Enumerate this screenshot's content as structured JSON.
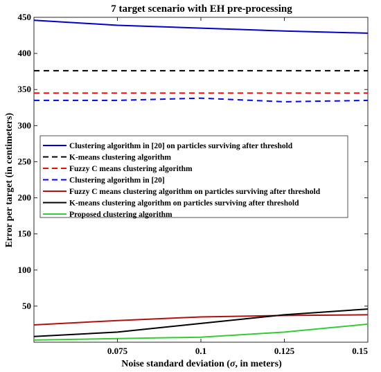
{
  "chart_data": {
    "type": "line",
    "title": "7 target scenario with EH pre-processing",
    "xlabel_prefix": "Noise standard deviation (",
    "xlabel_symbol": "σ",
    "xlabel_suffix": ", in meters)",
    "ylabel": "Error per target (in centimeters)",
    "xlim": [
      0.05,
      0.15
    ],
    "ylim": [
      0,
      450
    ],
    "x_ticks": [
      0.075,
      0.1,
      0.125,
      0.15
    ],
    "x_tick_labels": [
      "0.075",
      "0.1",
      "0.125",
      "0.15"
    ],
    "y_ticks": [
      50,
      100,
      150,
      200,
      250,
      300,
      350,
      400,
      450
    ],
    "y_tick_labels": [
      "50",
      "100",
      "150",
      "200",
      "250",
      "300",
      "350",
      "400",
      "450"
    ],
    "x": [
      0.05,
      0.075,
      0.1,
      0.125,
      0.15
    ],
    "grid": false,
    "legend_position": "center-left",
    "series": [
      {
        "name": "Clustering algorithm in [20] on particles surviving after threshold",
        "color": "#0000cc",
        "dash": "solid",
        "values": [
          446,
          439,
          435,
          431,
          428
        ]
      },
      {
        "name": "K-means clustering algorithm",
        "color": "#000000",
        "dash": "dashed",
        "values": [
          376,
          376,
          376,
          376,
          376
        ]
      },
      {
        "name": "Fuzzy C means clustering algorithm",
        "color": "#ff0000",
        "dash": "dashed",
        "values": [
          345,
          345,
          345,
          345,
          345
        ]
      },
      {
        "name": "Clustering algorithm in [20]",
        "color": "#0000ff",
        "dash": "dashed",
        "values": [
          335,
          335,
          338,
          333,
          335
        ]
      },
      {
        "name": "Fuzzy C means clustering algorithm on particles surviving after threshold",
        "color": "#b01010",
        "dash": "solid",
        "values": [
          24,
          30,
          35,
          37,
          38
        ]
      },
      {
        "name": "K-means clustering  algorithm on particles surviving after threshold",
        "color": "#000000",
        "dash": "solid",
        "values": [
          8,
          14,
          26,
          38,
          46
        ]
      },
      {
        "name": "Proposed clustering algorithm",
        "color": "#33cc33",
        "dash": "solid",
        "values": [
          3,
          5,
          7,
          14,
          25
        ]
      }
    ]
  }
}
